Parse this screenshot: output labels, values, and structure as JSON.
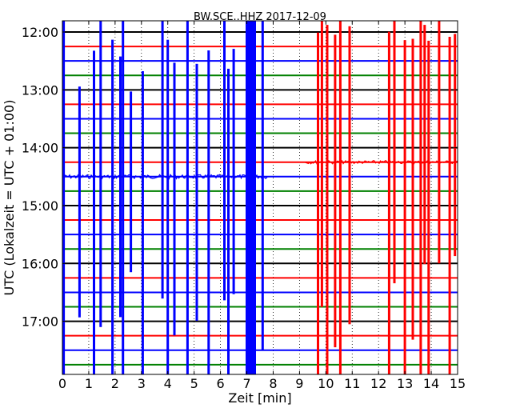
{
  "chart_data": {
    "type": "line",
    "title": "BW.SCE..HHZ 2017-12-09",
    "xlabel": "Zeit  [min]",
    "ylabel": "UTC (Lokalzeit = UTC + 01:00)",
    "xlim": [
      0,
      15
    ],
    "xticks": [
      0,
      1,
      2,
      3,
      4,
      5,
      6,
      7,
      8,
      9,
      10,
      11,
      12,
      13,
      14,
      15
    ],
    "xtick_labels": [
      "0",
      "1",
      "2",
      "3",
      "4",
      "5",
      "6",
      "7",
      "8",
      "9",
      "10",
      "11",
      "12",
      "13",
      "14",
      "15"
    ],
    "ytick_labels": [
      "12:00",
      "13:00",
      "14:00",
      "15:00",
      "16:00",
      "17:00"
    ],
    "ytick_rows": [
      0,
      4,
      8,
      12,
      16,
      20
    ],
    "row_count": 24,
    "row_minutes": 15,
    "first_row_time": "12:00",
    "row_colors": [
      "#000000",
      "#ff0000",
      "#0000ff",
      "#008000"
    ],
    "grid": "vertical-dotted",
    "blue_bursts": [
      0.05,
      0.65,
      1.2,
      1.45,
      1.9,
      2.2,
      2.3,
      2.6,
      3.05,
      3.8,
      4.0,
      4.25,
      4.75,
      5.1,
      5.55,
      6.15,
      6.3,
      6.5,
      7.0,
      7.15,
      7.3,
      7.6
    ],
    "red_bursts": [
      9.7,
      9.85,
      10.05,
      10.35,
      10.55,
      10.9,
      12.4,
      12.6,
      13.0,
      13.3,
      13.6,
      13.75,
      13.9,
      14.3,
      14.7,
      14.9
    ],
    "strong_burst_range_min": [
      7.0,
      7.35
    ]
  }
}
